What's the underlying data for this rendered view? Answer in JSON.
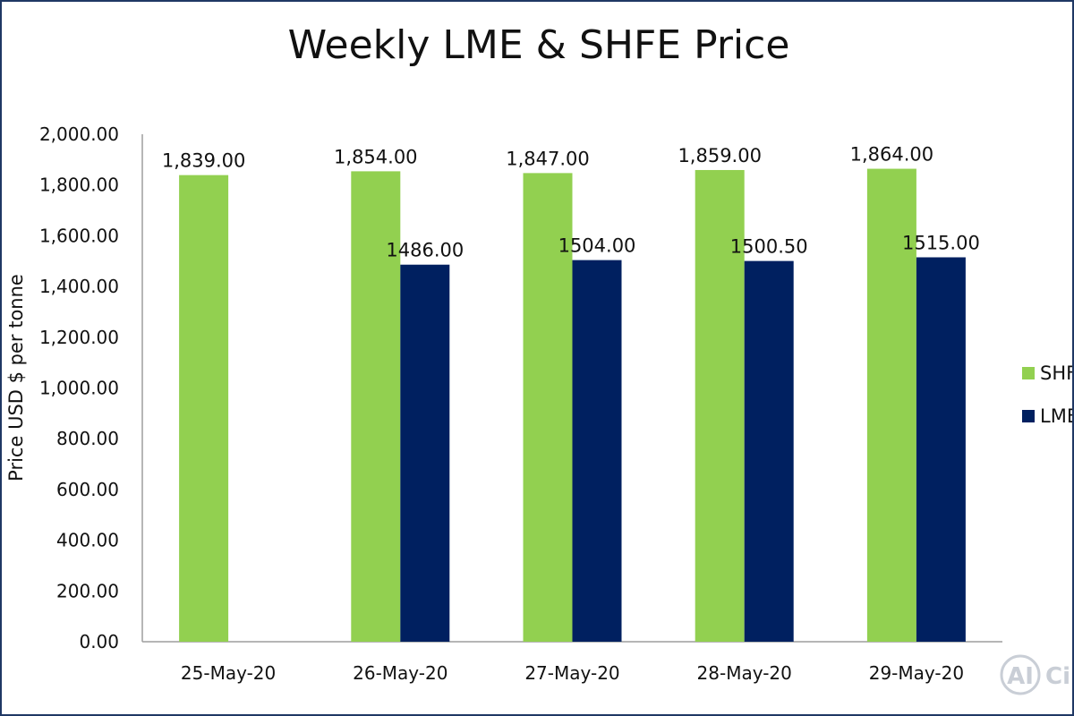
{
  "chart_data": {
    "type": "bar",
    "title": "Weekly LME & SHFE Price",
    "ylabel": "Price USD $ per tonne",
    "xlabel": "",
    "categories": [
      "25-May-20",
      "26-May-20",
      "27-May-20",
      "28-May-20",
      "29-May-20"
    ],
    "series": [
      {
        "name": "SHFE",
        "color": "#92d050",
        "values": [
          1839.0,
          1854.0,
          1847.0,
          1859.0,
          1864.0
        ],
        "labels": [
          "1,839.00",
          "1,854.00",
          "1,847.00",
          "1,859.00",
          "1,864.00"
        ]
      },
      {
        "name": "LME",
        "color": "#002060",
        "values": [
          null,
          1486.0,
          1504.0,
          1500.5,
          1515.0
        ],
        "labels": [
          "",
          "1486.00",
          "1504.00",
          "1500.50",
          "1515.00"
        ]
      }
    ],
    "ylim": [
      0,
      2000
    ],
    "yticks": [
      0,
      200,
      400,
      600,
      800,
      1000,
      1200,
      1400,
      1600,
      1800,
      2000
    ],
    "ytick_labels": [
      "0.00",
      "200.00",
      "400.00",
      "600.00",
      "800.00",
      "1,000.00",
      "1,200.00",
      "1,400.00",
      "1,600.00",
      "1,800.00",
      "2,000.00"
    ],
    "grid": false,
    "legend_position": "right"
  },
  "watermark": {
    "logo_text": "AI",
    "text": "Circ"
  },
  "frame_color": "#1f3864"
}
